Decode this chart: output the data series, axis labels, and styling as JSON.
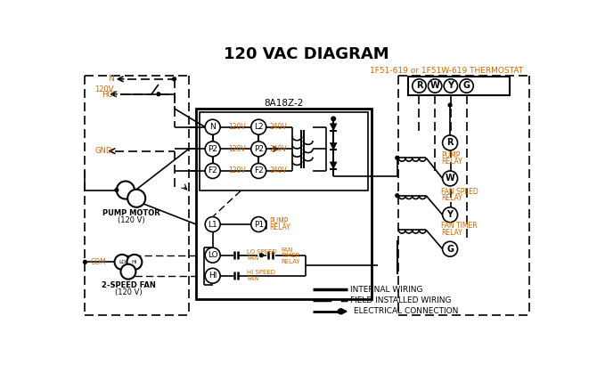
{
  "title": "120 VAC DIAGRAM",
  "bg_color": "#ffffff",
  "line_color": "#000000",
  "orange_color": "#cc6600",
  "thermostat_label": "1F51-619 or 1F51W-619 THERMOSTAT",
  "control_box_label": "8A18Z-2",
  "legend": {
    "internal_wiring": "INTERNAL WIRING",
    "field_wiring": "FIELD INSTALLED WIRING",
    "electrical_connection": "ELECTRICAL CONNECTION"
  }
}
